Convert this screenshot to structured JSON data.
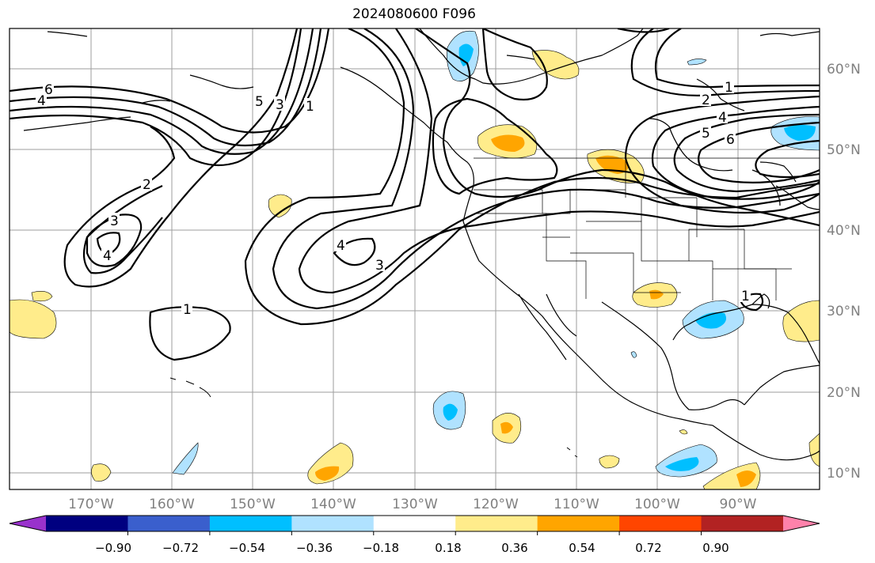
{
  "title": "2024080600 F096",
  "map": {
    "type": "map",
    "grid": true,
    "lon_ticks": [
      "170°W",
      "160°W",
      "150°W",
      "140°W",
      "130°W",
      "120°W",
      "110°W",
      "100°W",
      "90°W"
    ],
    "lat_ticks": [
      "60°N",
      "50°N",
      "40°N",
      "30°N",
      "20°N",
      "10°N"
    ],
    "contour_labels": [
      "6",
      "4",
      "5",
      "3",
      "1",
      "2",
      "3",
      "4",
      "4",
      "3",
      "1",
      "1",
      "2",
      "4",
      "5",
      "6",
      "1"
    ]
  },
  "colorbar": {
    "colors": [
      "#9932cc",
      "#000080",
      "#3a5fcd",
      "#00bfff",
      "#b0e2ff",
      "#ffffff",
      "#ffec8b",
      "#ffa500",
      "#ff4500",
      "#b22222",
      "#ff82ab"
    ],
    "ticks": [
      "−0.90",
      "−0.72",
      "−0.54",
      "−0.36",
      "−0.18",
      "0.18",
      "0.36",
      "0.54",
      "0.72",
      "0.90"
    ]
  }
}
